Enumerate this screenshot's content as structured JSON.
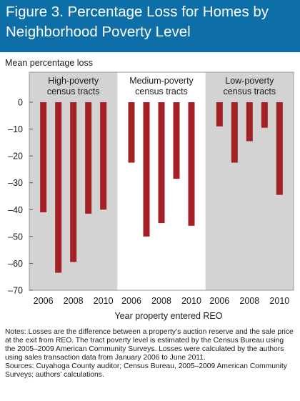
{
  "title": "Figure 3. Percentage Loss for Homes by Neighborhood Poverty Level",
  "colors": {
    "header": "#0e6ea8",
    "bar": "#a32024",
    "panel_gray": "#d3d3d3",
    "axis_text": "#1a1a1a"
  },
  "chart_data": {
    "type": "bar",
    "ylabel": "Mean percentage loss",
    "xlabel": "Year property entered REO",
    "ylim": [
      -70,
      0
    ],
    "yticks": [
      0,
      -10,
      -20,
      -30,
      -40,
      -50,
      -60,
      -70
    ],
    "ytick_labels": [
      "0",
      "–10",
      "–20",
      "–30",
      "–40",
      "–50",
      "–60",
      "–70"
    ],
    "xtick_labels": [
      "2006",
      "2008",
      "2010"
    ],
    "grid": false,
    "panels": [
      {
        "label_line1": "High-poverty",
        "label_line2": "census tracts",
        "shaded": true,
        "categories": [
          "2006",
          "2007",
          "2008",
          "2009",
          "2010"
        ],
        "values": [
          -41,
          -63.5,
          -59.5,
          -41.5,
          -40
        ]
      },
      {
        "label_line1": "Medium-poverty",
        "label_line2": "census tracts",
        "shaded": false,
        "categories": [
          "2006",
          "2007",
          "2008",
          "2009",
          "2010"
        ],
        "values": [
          -22.5,
          -50,
          -45,
          -28.5,
          -46
        ]
      },
      {
        "label_line1": "Low-poverty",
        "label_line2": "census tracts",
        "shaded": true,
        "categories": [
          "2006",
          "2007",
          "2008",
          "2009",
          "2010"
        ],
        "values": [
          -9,
          -22.5,
          -14.5,
          -9.5,
          -34.5
        ]
      }
    ]
  },
  "notes": "Notes: Losses are the difference between a property’s auction reserve and the sale price at the exit from REO. The tract poverty level is estimated by the Census Bureau using the 2005–2009 American Community Surveys. Losses were calculated by the authors using sales transaction data from January 2006 to June 2011.",
  "sources": "Sources: Cuyahoga County auditor; Census Bureau, 2005–2009 American Community Surveys; authors’ calculations."
}
